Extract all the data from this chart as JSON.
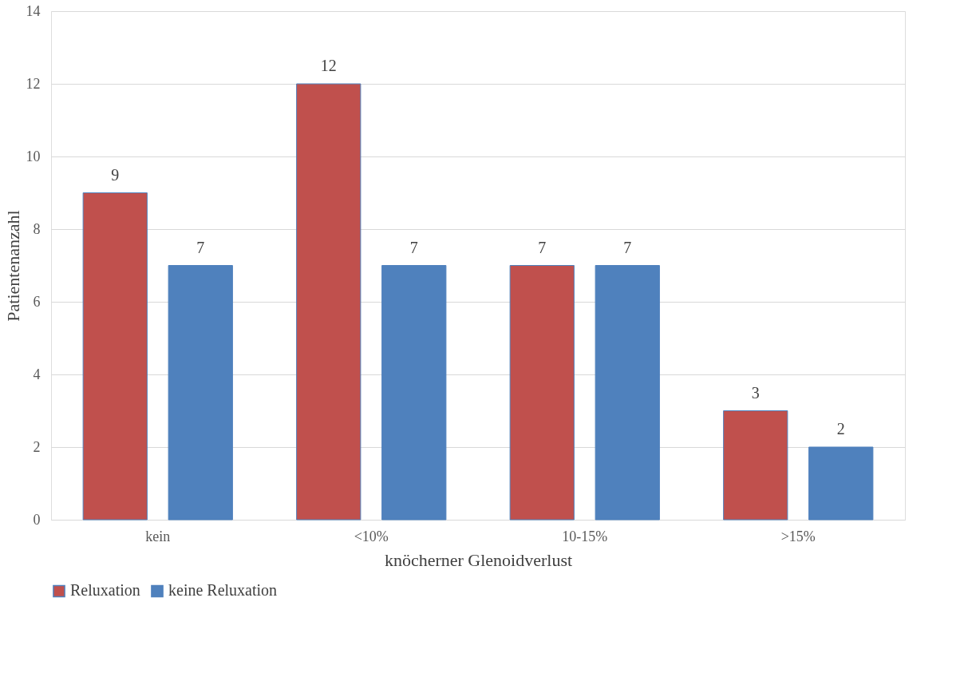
{
  "chart_data": {
    "type": "bar",
    "xlabel": "knöcherner Glenoidverlust",
    "ylabel": "Patientenanzahl",
    "categories": [
      "kein",
      "<10%",
      "10-15%",
      ">15%"
    ],
    "series": [
      {
        "name": "Reluxation",
        "color": "#c0504d",
        "values": [
          9,
          12,
          7,
          3
        ]
      },
      {
        "name": "keine Reluxation",
        "color": "#4f81bd",
        "values": [
          7,
          7,
          7,
          2
        ]
      }
    ],
    "ylim": [
      0,
      14
    ],
    "yticks": [
      0,
      2,
      4,
      6,
      8,
      10,
      12,
      14
    ],
    "grid": "y",
    "legend": "bottom",
    "data_labels": true
  }
}
